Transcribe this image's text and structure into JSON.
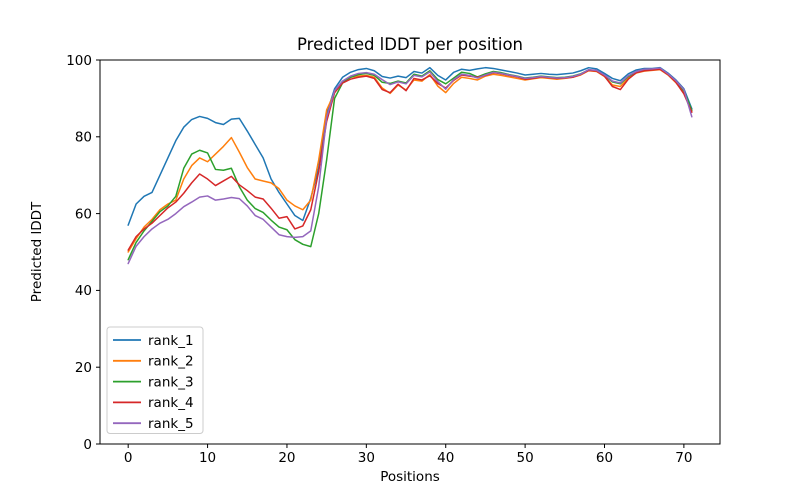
{
  "figure": {
    "background": "#ffffff",
    "text_color": "#000000",
    "spine_color": "#000000",
    "legend_border_color": "#cccccc"
  },
  "chart_data": {
    "type": "line",
    "title": "Predicted lDDT per position",
    "xlabel": "Positions",
    "ylabel": "Predicted lDDT",
    "xlim": [
      -3.55,
      74.55
    ],
    "ylim": [
      0,
      100
    ],
    "xticks": [
      0,
      10,
      20,
      30,
      40,
      50,
      60,
      70
    ],
    "yticks": [
      0,
      20,
      40,
      60,
      80,
      100
    ],
    "grid": false,
    "legend_position": "lower left",
    "x_is_index": true,
    "n_points": 72,
    "series": [
      {
        "name": "rank_1",
        "color": "#1f77b4",
        "values": [
          57,
          62.5,
          64.5,
          65.5,
          70,
          74.5,
          79,
          82.5,
          84.5,
          85.3,
          84.8,
          83.7,
          83.2,
          84.6,
          84.8,
          81.5,
          78,
          74.5,
          69,
          65.5,
          62.5,
          59.5,
          58.2,
          64,
          72,
          86,
          92.5,
          95.5,
          96.8,
          97.5,
          97.8,
          97.2,
          95.7,
          95.3,
          95.8,
          95.4,
          97,
          96.6,
          98,
          96,
          94.8,
          96.8,
          97.6,
          97.3,
          97.7,
          98,
          97.8,
          97.4,
          97,
          96.6,
          96.1,
          96.3,
          96.5,
          96.3,
          96.2,
          96.4,
          96.6,
          97.2,
          98,
          97.7,
          96.5,
          95.2,
          94.6,
          96.4,
          97.4,
          97.8,
          97.8,
          98,
          96.6,
          94.8,
          92.5,
          87.3
        ]
      },
      {
        "name": "rank_2",
        "color": "#ff7f0e",
        "values": [
          50,
          53.5,
          56.5,
          58.5,
          61,
          62.5,
          63.5,
          69,
          72.5,
          74.5,
          73.5,
          75.5,
          77.5,
          79.8,
          76,
          72,
          69,
          68.5,
          68,
          66.5,
          63.5,
          62,
          61,
          63.5,
          74,
          87,
          91.5,
          94.5,
          95.5,
          95.8,
          96,
          95.5,
          92.7,
          91.3,
          93.5,
          92.2,
          94.8,
          94.5,
          96.2,
          93.2,
          91.5,
          93.9,
          95.5,
          95.2,
          94.8,
          95.8,
          96.3,
          96,
          95.6,
          95.2,
          94.8,
          95.1,
          95.4,
          95.2,
          95,
          95.2,
          95.5,
          96.1,
          97.2,
          97,
          95.7,
          93.5,
          93.1,
          95.3,
          96.6,
          97.1,
          97.3,
          97.5,
          96.1,
          94.1,
          91.5,
          86.7
        ]
      },
      {
        "name": "rank_3",
        "color": "#2ca02c",
        "values": [
          48,
          52.5,
          55.5,
          58,
          60.5,
          62,
          64.5,
          71.8,
          75.5,
          76.5,
          75.8,
          71.5,
          71.3,
          71.8,
          67,
          63.5,
          61.3,
          60.3,
          58.3,
          56.5,
          55.8,
          53.2,
          52,
          51.4,
          60,
          74,
          90,
          94,
          95.5,
          96.2,
          96.5,
          96,
          94.2,
          93.9,
          94.5,
          94,
          96.3,
          95.8,
          97.2,
          94.9,
          93.8,
          95.3,
          96.8,
          96.5,
          95.6,
          96.4,
          97,
          96.7,
          96.2,
          95.8,
          95.3,
          95.5,
          95.8,
          95.6,
          95.4,
          95.5,
          95.8,
          96.4,
          97.4,
          97.2,
          96,
          94.3,
          93.8,
          95.7,
          96.9,
          97.5,
          97.6,
          97.8,
          96.3,
          94.5,
          92,
          86.9
        ]
      },
      {
        "name": "rank_4",
        "color": "#d62728",
        "values": [
          50.5,
          54,
          56,
          57.5,
          59.5,
          61.5,
          63,
          65.3,
          68,
          70.3,
          69,
          67.3,
          68.5,
          69.7,
          67.5,
          66,
          64.3,
          63.8,
          61.4,
          58.8,
          59.2,
          56,
          56.8,
          61,
          71,
          84,
          91.5,
          94,
          95,
          95.5,
          95.8,
          95.2,
          92.3,
          91.5,
          93.7,
          92,
          95.2,
          94.8,
          95.9,
          93.9,
          92.7,
          94.7,
          96.1,
          95.8,
          95.5,
          96,
          96.7,
          96.4,
          96,
          95.6,
          95,
          95.2,
          95.6,
          95.4,
          95.2,
          95.3,
          95.5,
          96.2,
          97.3,
          97.1,
          95.8,
          93.1,
          92.3,
          95,
          96.7,
          97.2,
          97.4,
          97.6,
          96.2,
          94.2,
          91.2,
          86.4
        ]
      },
      {
        "name": "rank_5",
        "color": "#9467bd",
        "values": [
          47,
          51.5,
          54,
          56,
          57.5,
          58.5,
          60,
          61.8,
          63,
          64.3,
          64.6,
          63.5,
          63.8,
          64.2,
          63.9,
          62,
          59.5,
          58.5,
          56.5,
          54.5,
          54,
          53.8,
          54,
          55.5,
          67,
          85,
          92,
          94.5,
          95.8,
          96.5,
          96.7,
          96.3,
          94.9,
          93.6,
          94.3,
          93.8,
          96,
          95.6,
          96.9,
          94.4,
          92.4,
          94.9,
          96.3,
          96,
          95.3,
          96.1,
          96.8,
          96.5,
          96.1,
          95.7,
          95.2,
          95.4,
          95.7,
          95.5,
          95.3,
          95.4,
          95.7,
          96.3,
          97.5,
          97.3,
          96.1,
          94.5,
          94,
          95.9,
          97,
          97.6,
          97.7,
          97.9,
          96.4,
          94.6,
          92.3,
          85.2
        ]
      }
    ]
  }
}
